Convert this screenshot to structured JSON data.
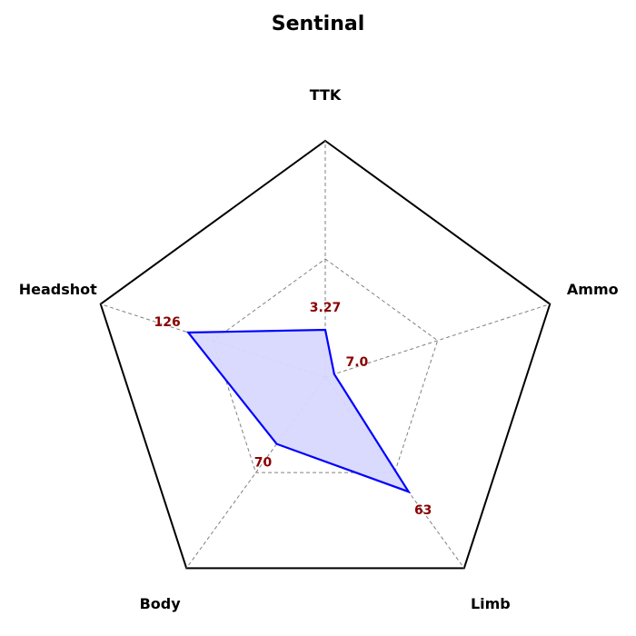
{
  "chart_data": {
    "type": "radar",
    "title": "Sentinal",
    "axes": [
      "TTK",
      "Ammo",
      "Limb",
      "Body",
      "Headshot"
    ],
    "series": [
      {
        "values": [
          3.27,
          7.0,
          63,
          70,
          126
        ],
        "normalized": [
          0.2,
          0.04,
          0.6,
          0.35,
          0.61
        ],
        "value_labels": [
          "3.27",
          "7.0",
          "63",
          "70",
          "126"
        ]
      }
    ],
    "grid": "dashed",
    "ring_levels": [
      0.5,
      1.0
    ]
  },
  "colors": {
    "series_line": "#0000ff",
    "series_fill": "#d8d8ff",
    "value_label": "#8b0000",
    "grid": "#808080",
    "outer": "#000000"
  }
}
